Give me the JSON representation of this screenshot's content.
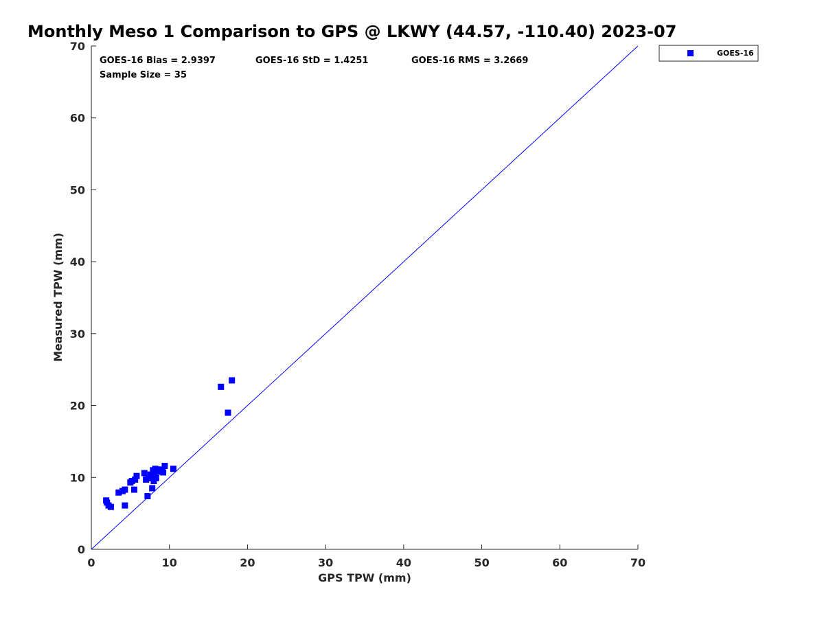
{
  "chart_data": {
    "type": "scatter",
    "title": "Monthly Meso 1 Comparison to GPS @ LKWY (44.57, -110.40) 2023-07",
    "xlabel": "GPS TPW (mm)",
    "ylabel": "Measured TPW (mm)",
    "xlim": [
      0,
      70
    ],
    "ylim": [
      0,
      70
    ],
    "xticks": [
      "0",
      "10",
      "20",
      "30",
      "40",
      "50",
      "60",
      "70"
    ],
    "yticks": [
      "0",
      "10",
      "20",
      "30",
      "40",
      "50",
      "60",
      "70"
    ],
    "grid": false,
    "legend_position": "outside top-right",
    "reference_line": {
      "x": [
        0,
        70
      ],
      "y": [
        0,
        70
      ],
      "color": "#0000ff"
    },
    "stats": {
      "bias": "GOES-16 Bias = 2.9397",
      "std": "GOES-16 StD = 1.4251",
      "rms": "GOES-16 RMS = 3.2669",
      "sample": "Sample Size = 35"
    },
    "series": [
      {
        "name": "GOES-16",
        "color": "#0000ff",
        "marker": "square",
        "x": [
          1.9,
          2.0,
          2.2,
          2.5,
          3.5,
          4.0,
          4.3,
          4.3,
          5.0,
          5.2,
          5.5,
          5.6,
          5.8,
          6.8,
          7.0,
          7.2,
          7.3,
          7.8,
          7.9,
          7.9,
          8.0,
          8.1,
          8.2,
          8.3,
          8.4,
          8.6,
          8.8,
          9.0,
          9.2,
          9.4,
          10.5,
          16.6,
          17.5,
          18.0,
          7.6
        ],
        "y": [
          6.8,
          6.5,
          6.1,
          5.9,
          7.9,
          8.1,
          8.3,
          6.1,
          9.3,
          9.5,
          8.3,
          9.7,
          10.2,
          10.6,
          9.7,
          7.4,
          9.9,
          8.5,
          10.0,
          11.0,
          9.5,
          10.4,
          11.2,
          9.9,
          10.8,
          11.1,
          11.0,
          10.9,
          10.7,
          11.6,
          11.2,
          22.6,
          19.0,
          23.5,
          10.4
        ]
      }
    ]
  }
}
